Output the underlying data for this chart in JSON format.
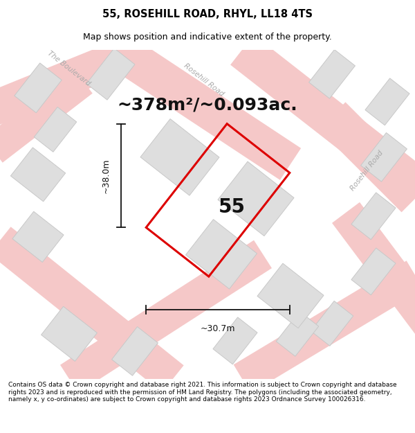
{
  "title": "55, ROSEHILL ROAD, RHYL, LL18 4TS",
  "subtitle": "Map shows position and indicative extent of the property.",
  "area_text": "~378m²/~0.093ac.",
  "dim_width": "~30.7m",
  "dim_height": "~38.0m",
  "label": "55",
  "footer": "Contains OS data © Crown copyright and database right 2021. This information is subject to Crown copyright and database rights 2023 and is reproduced with the permission of HM Land Registry. The polygons (including the associated geometry, namely x, y co-ordinates) are subject to Crown copyright and database rights 2023 Ordnance Survey 100026316.",
  "map_bg": "#f2f2f2",
  "road_fill_color": "#f5c8c8",
  "road_edge_color": "#e8a8a8",
  "building_color": "#dedede",
  "building_edge": "#c8c8c8",
  "plot_color": "#dd0000",
  "road_label_color": "#aaaaaa",
  "title_fontsize": 10.5,
  "subtitle_fontsize": 9,
  "area_fontsize": 18,
  "label_fontsize": 20,
  "footer_fontsize": 6.5,
  "dim_fontsize": 9
}
